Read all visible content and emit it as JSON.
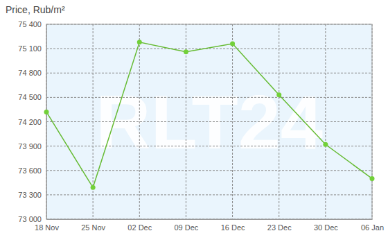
{
  "chart_data": {
    "type": "line",
    "ylabel": "Price, Rub/m²",
    "annotations": [
      "RLT24"
    ],
    "categories": [
      "18 Nov",
      "25 Nov",
      "02 Dec",
      "09 Dec",
      "16 Dec",
      "23 Dec",
      "30 Dec",
      "06 Jan"
    ],
    "values": [
      74320,
      73390,
      75180,
      75060,
      75160,
      74530,
      73920,
      73500
    ],
    "color": "#66bb33",
    "marker": "circle",
    "ylim": [
      73000,
      75400
    ],
    "yticks": [
      {
        "value": 73000,
        "label": "73 000"
      },
      {
        "value": 73300,
        "label": "73 300"
      },
      {
        "value": 73600,
        "label": "73 600"
      },
      {
        "value": 73900,
        "label": "73 900"
      },
      {
        "value": 74200,
        "label": "74 200"
      },
      {
        "value": 74500,
        "label": "74 500"
      },
      {
        "value": 74800,
        "label": "74 800"
      },
      {
        "value": 75100,
        "label": "75 100"
      },
      {
        "value": 75400,
        "label": "75 400"
      }
    ],
    "grid": true
  }
}
